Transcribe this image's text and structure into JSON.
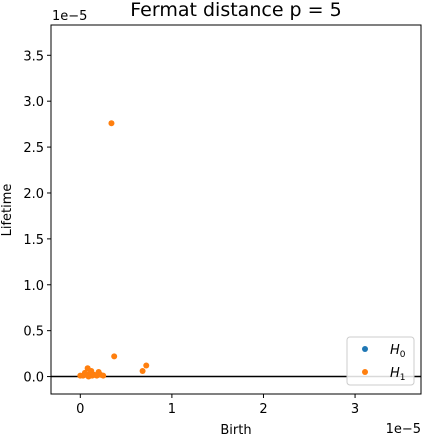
{
  "chart_data": {
    "type": "scatter",
    "title": "Fermat distance p = 5",
    "xlabel": "Birth",
    "ylabel": "Lifetime",
    "x_multiplier": "1e−5",
    "y_multiplier": "1e−5",
    "xlim": [
      -0.32,
      3.72
    ],
    "ylim": [
      -0.19,
      3.83
    ],
    "x_ticks": [
      {
        "value": 0,
        "label": "0"
      },
      {
        "value": 1,
        "label": "1"
      },
      {
        "value": 2,
        "label": "2"
      },
      {
        "value": 3,
        "label": "3"
      }
    ],
    "y_ticks": [
      {
        "value": 0.0,
        "label": "0.0"
      },
      {
        "value": 0.5,
        "label": "0.5"
      },
      {
        "value": 1.0,
        "label": "1.0"
      },
      {
        "value": 1.5,
        "label": "1.5"
      },
      {
        "value": 2.0,
        "label": "2.0"
      },
      {
        "value": 2.5,
        "label": "2.5"
      },
      {
        "value": 3.0,
        "label": "3.0"
      },
      {
        "value": 3.5,
        "label": "3.5"
      }
    ],
    "reference_line_y": 0,
    "legend_position": "lower-right",
    "series": [
      {
        "name": "H0",
        "name_base": "H",
        "name_sub": "0",
        "color": "#1f77b4",
        "points": []
      },
      {
        "name": "H1",
        "name_base": "H",
        "name_sub": "1",
        "color": "#ff7f0e",
        "points": [
          [
            0.34,
            2.76
          ],
          [
            0.37,
            0.22
          ],
          [
            0.72,
            0.12
          ],
          [
            0.68,
            0.06
          ],
          [
            0.08,
            0.09
          ],
          [
            0.12,
            0.06
          ],
          [
            0.05,
            0.04
          ],
          [
            0.1,
            0.03
          ],
          [
            0.15,
            0.02
          ],
          [
            0.2,
            0.05
          ],
          [
            0.22,
            0.02
          ],
          [
            0.03,
            0.01
          ],
          [
            0.0,
            0.01
          ],
          [
            0.06,
            0.02
          ],
          [
            0.13,
            0.01
          ],
          [
            0.18,
            0.01
          ],
          [
            0.25,
            0.01
          ],
          [
            0.09,
            0.0
          ]
        ]
      }
    ]
  }
}
